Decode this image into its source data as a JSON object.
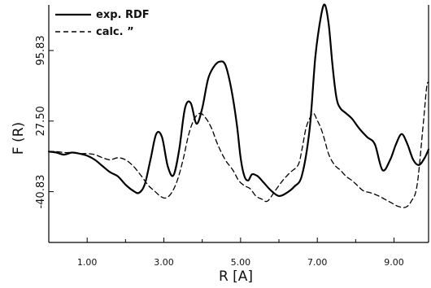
{
  "chart_data": {
    "type": "line",
    "title": "",
    "xlabel": "R [A]",
    "ylabel": "F (R)",
    "xlim": [
      0.0,
      9.9
    ],
    "ylim": [
      -90,
      140
    ],
    "grid": false,
    "legend_position": "top-left",
    "x_ticks": [
      1.0,
      3.0,
      5.0,
      7.0,
      9.0
    ],
    "x_tick_labels": [
      "1.00",
      "3.00",
      "5.00",
      "7.00",
      "9.00"
    ],
    "y_ticks": [
      -40.83,
      27.5,
      95.83
    ],
    "y_tick_labels": [
      "-40.83",
      "27.50",
      "95.83"
    ],
    "series": [
      {
        "name": "exp. RDF",
        "style": "solid",
        "color": "#000000",
        "x": [
          0.0,
          0.2,
          0.4,
          0.6,
          0.8,
          1.0,
          1.2,
          1.4,
          1.6,
          1.8,
          2.0,
          2.2,
          2.35,
          2.5,
          2.65,
          2.8,
          2.95,
          3.1,
          3.25,
          3.4,
          3.55,
          3.7,
          3.85,
          4.0,
          4.15,
          4.3,
          4.45,
          4.6,
          4.75,
          4.9,
          5.0,
          5.1,
          5.2,
          5.3,
          5.45,
          5.6,
          5.8,
          6.0,
          6.2,
          6.4,
          6.6,
          6.8,
          6.95,
          7.1,
          7.2,
          7.3,
          7.4,
          7.5,
          7.6,
          7.75,
          7.9,
          8.1,
          8.3,
          8.5,
          8.7,
          8.9,
          9.05,
          9.2,
          9.35,
          9.5,
          9.65,
          9.8,
          9.9
        ],
        "y": [
          -2,
          -3,
          -5,
          -3,
          -4,
          -6,
          -10,
          -16,
          -22,
          -26,
          -34,
          -40,
          -42,
          -34,
          -10,
          15,
          12,
          -16,
          -25,
          0,
          40,
          45,
          25,
          40,
          68,
          80,
          85,
          82,
          60,
          25,
          -8,
          -26,
          -30,
          -24,
          -26,
          -32,
          -40,
          -45,
          -42,
          -36,
          -25,
          20,
          90,
          130,
          140,
          120,
          80,
          50,
          40,
          35,
          30,
          20,
          12,
          5,
          -20,
          -10,
          5,
          15,
          5,
          -10,
          -15,
          -8,
          0
        ]
      },
      {
        "name": "calc. ”",
        "style": "dashed",
        "color": "#000000",
        "x": [
          0.0,
          0.2,
          0.4,
          0.6,
          0.8,
          1.0,
          1.2,
          1.4,
          1.6,
          1.8,
          2.0,
          2.2,
          2.4,
          2.6,
          2.75,
          2.9,
          3.05,
          3.2,
          3.35,
          3.5,
          3.65,
          3.8,
          3.95,
          4.1,
          4.25,
          4.4,
          4.6,
          4.8,
          4.95,
          5.1,
          5.25,
          5.4,
          5.55,
          5.7,
          5.9,
          6.1,
          6.3,
          6.5,
          6.6,
          6.7,
          6.8,
          6.9,
          7.0,
          7.1,
          7.2,
          7.3,
          7.45,
          7.6,
          7.75,
          7.9,
          8.05,
          8.2,
          8.4,
          8.6,
          8.75,
          8.85,
          8.95,
          9.1,
          9.3,
          9.45,
          9.6,
          9.75,
          9.85,
          9.9
        ],
        "y": [
          -2,
          -2,
          -3,
          -3,
          -4,
          -4,
          -5,
          -8,
          -10,
          -8,
          -10,
          -16,
          -25,
          -35,
          -40,
          -45,
          -47,
          -42,
          -30,
          -10,
          15,
          30,
          35,
          30,
          20,
          5,
          -10,
          -20,
          -30,
          -35,
          -38,
          -45,
          -48,
          -50,
          -40,
          -30,
          -22,
          -15,
          0,
          20,
          30,
          35,
          28,
          20,
          8,
          -5,
          -15,
          -20,
          -26,
          -30,
          -35,
          -40,
          -42,
          -45,
          -48,
          -50,
          -52,
          -55,
          -56,
          -50,
          -35,
          20,
          60,
          65
        ]
      }
    ]
  }
}
